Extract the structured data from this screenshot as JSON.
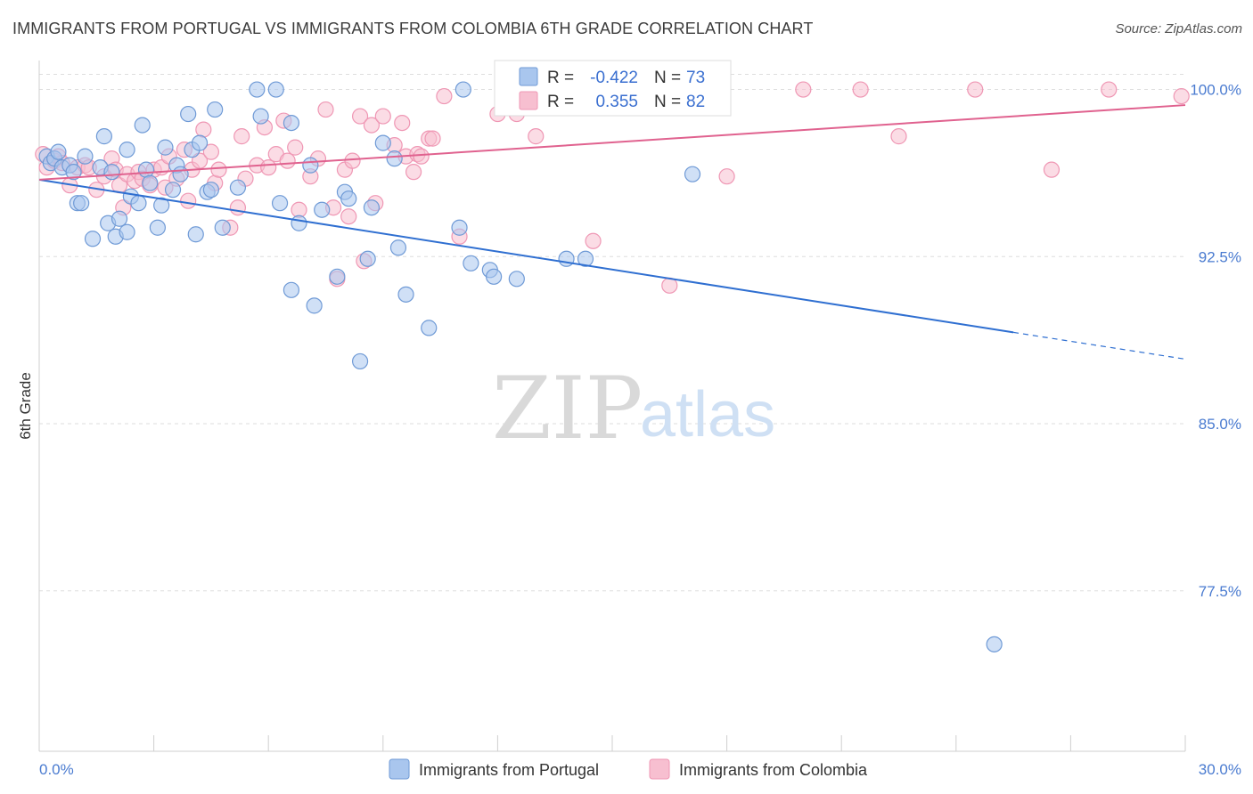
{
  "title": "IMMIGRANTS FROM PORTUGAL VS IMMIGRANTS FROM COLOMBIA 6TH GRADE CORRELATION CHART",
  "source": "Source: ZipAtlas.com",
  "watermark": {
    "zip": "ZIP",
    "atlas": "atlas"
  },
  "colors": {
    "portugal_fill": "#a9c6ee",
    "portugal_stroke": "#6f9ad6",
    "portugal_line": "#2f6fd1",
    "colombia_fill": "#f7bfd0",
    "colombia_stroke": "#ef97b4",
    "colombia_line": "#e0628f",
    "axis_label": "#4a7bd0",
    "grid": "#dedede"
  },
  "stats": [
    {
      "series": "Immigrants from Portugal",
      "r_label": "R =",
      "r_value": "-0.422",
      "n_label": "N =",
      "n_value": "73"
    },
    {
      "series": "Immigrants from Colombia",
      "r_label": "R =",
      "r_value": "0.355",
      "n_label": "N =",
      "n_value": "82"
    }
  ],
  "chart_data": {
    "type": "scatter",
    "title": "IMMIGRANTS FROM PORTUGAL VS IMMIGRANTS FROM COLOMBIA 6TH GRADE CORRELATION CHART",
    "xlabel": "",
    "ylabel": "6th Grade",
    "xlim": [
      0,
      30
    ],
    "ylim": [
      70.3,
      101.3
    ],
    "x_tick_labels": [
      "0.0%",
      "30.0%"
    ],
    "y_ticks": [
      77.5,
      85.0,
      92.5,
      100.0
    ],
    "y_tick_labels": [
      "77.5%",
      "85.0%",
      "92.5%",
      "100.0%"
    ],
    "grid": true,
    "legend_position": "bottom-center",
    "series": [
      {
        "name": "Immigrants from Portugal",
        "trend": {
          "x": [
            0,
            25.5
          ],
          "y": [
            95.95,
            89.1
          ],
          "dashed_to": [
            30,
            87.9
          ]
        },
        "points": [
          [
            0.2,
            97.0
          ],
          [
            0.3,
            96.7
          ],
          [
            0.4,
            96.9
          ],
          [
            0.5,
            97.2
          ],
          [
            0.6,
            96.5
          ],
          [
            0.8,
            96.6
          ],
          [
            0.9,
            96.3
          ],
          [
            1.0,
            94.9
          ],
          [
            1.1,
            94.9
          ],
          [
            1.2,
            97.0
          ],
          [
            1.4,
            93.3
          ],
          [
            1.6,
            96.5
          ],
          [
            1.7,
            97.9
          ],
          [
            1.8,
            94.0
          ],
          [
            1.9,
            96.3
          ],
          [
            2.0,
            93.4
          ],
          [
            2.1,
            94.2
          ],
          [
            2.3,
            93.6
          ],
          [
            2.3,
            97.3
          ],
          [
            2.4,
            95.2
          ],
          [
            2.6,
            94.9
          ],
          [
            2.7,
            98.4
          ],
          [
            2.8,
            96.4
          ],
          [
            2.9,
            95.8
          ],
          [
            3.1,
            93.8
          ],
          [
            3.2,
            94.8
          ],
          [
            3.3,
            97.4
          ],
          [
            3.5,
            95.5
          ],
          [
            3.6,
            96.6
          ],
          [
            3.7,
            96.2
          ],
          [
            3.9,
            98.9
          ],
          [
            4.0,
            97.3
          ],
          [
            4.1,
            93.5
          ],
          [
            4.2,
            97.6
          ],
          [
            4.4,
            95.4
          ],
          [
            4.5,
            95.5
          ],
          [
            4.6,
            99.1
          ],
          [
            4.8,
            93.8
          ],
          [
            5.2,
            95.6
          ],
          [
            5.7,
            100.0
          ],
          [
            5.8,
            98.8
          ],
          [
            6.2,
            100.0
          ],
          [
            6.3,
            94.9
          ],
          [
            6.6,
            98.5
          ],
          [
            6.6,
            91.0
          ],
          [
            6.8,
            94.0
          ],
          [
            7.1,
            96.6
          ],
          [
            7.2,
            90.3
          ],
          [
            7.4,
            94.6
          ],
          [
            7.8,
            91.6
          ],
          [
            8.0,
            95.4
          ],
          [
            8.1,
            95.1
          ],
          [
            8.4,
            87.8
          ],
          [
            8.6,
            92.4
          ],
          [
            8.7,
            94.7
          ],
          [
            9.0,
            97.6
          ],
          [
            9.3,
            96.9
          ],
          [
            9.4,
            92.9
          ],
          [
            9.6,
            90.8
          ],
          [
            10.2,
            89.3
          ],
          [
            11.0,
            93.8
          ],
          [
            11.1,
            100.0
          ],
          [
            11.3,
            92.2
          ],
          [
            11.8,
            91.9
          ],
          [
            11.9,
            91.6
          ],
          [
            12.5,
            91.5
          ],
          [
            13.1,
            100.0
          ],
          [
            13.8,
            92.4
          ],
          [
            14.3,
            92.4
          ],
          [
            14.7,
            100.0
          ],
          [
            16.8,
            100.0
          ],
          [
            17.1,
            96.2
          ],
          [
            25.0,
            75.1
          ]
        ]
      },
      {
        "name": "Immigrants from Colombia",
        "trend": {
          "x": [
            0,
            30
          ],
          "y": [
            95.95,
            99.3
          ]
        },
        "points": [
          [
            0.1,
            97.1
          ],
          [
            0.2,
            96.5
          ],
          [
            0.4,
            96.8
          ],
          [
            0.5,
            97.0
          ],
          [
            0.6,
            96.7
          ],
          [
            0.8,
            95.7
          ],
          [
            1.0,
            96.5
          ],
          [
            1.2,
            96.6
          ],
          [
            1.3,
            96.5
          ],
          [
            1.5,
            95.5
          ],
          [
            1.7,
            96.1
          ],
          [
            1.9,
            96.9
          ],
          [
            2.0,
            96.4
          ],
          [
            2.1,
            95.7
          ],
          [
            2.2,
            94.7
          ],
          [
            2.3,
            96.2
          ],
          [
            2.5,
            95.9
          ],
          [
            2.6,
            96.3
          ],
          [
            2.7,
            96.0
          ],
          [
            2.9,
            95.7
          ],
          [
            3.0,
            96.4
          ],
          [
            3.2,
            96.5
          ],
          [
            3.3,
            95.6
          ],
          [
            3.4,
            97.0
          ],
          [
            3.6,
            96.0
          ],
          [
            3.8,
            97.3
          ],
          [
            3.9,
            95.0
          ],
          [
            4.0,
            96.4
          ],
          [
            4.2,
            96.8
          ],
          [
            4.3,
            98.2
          ],
          [
            4.5,
            97.2
          ],
          [
            4.6,
            95.8
          ],
          [
            4.7,
            96.4
          ],
          [
            5.0,
            93.8
          ],
          [
            5.2,
            94.7
          ],
          [
            5.3,
            97.9
          ],
          [
            5.4,
            96.0
          ],
          [
            5.7,
            96.6
          ],
          [
            5.9,
            98.3
          ],
          [
            6.0,
            96.5
          ],
          [
            6.2,
            97.1
          ],
          [
            6.4,
            98.6
          ],
          [
            6.5,
            96.8
          ],
          [
            6.7,
            97.4
          ],
          [
            6.8,
            94.6
          ],
          [
            7.1,
            96.1
          ],
          [
            7.3,
            96.9
          ],
          [
            7.5,
            99.1
          ],
          [
            7.7,
            94.7
          ],
          [
            7.8,
            91.5
          ],
          [
            8.0,
            96.4
          ],
          [
            8.1,
            94.3
          ],
          [
            8.2,
            96.8
          ],
          [
            8.4,
            98.8
          ],
          [
            8.5,
            92.3
          ],
          [
            8.7,
            98.4
          ],
          [
            8.8,
            94.9
          ],
          [
            9.0,
            98.8
          ],
          [
            9.3,
            97.5
          ],
          [
            9.5,
            98.5
          ],
          [
            9.6,
            97.0
          ],
          [
            9.8,
            96.3
          ],
          [
            9.9,
            97.1
          ],
          [
            10.0,
            97.0
          ],
          [
            10.2,
            97.8
          ],
          [
            10.3,
            97.8
          ],
          [
            10.6,
            99.7
          ],
          [
            11.0,
            93.4
          ],
          [
            12.0,
            98.9
          ],
          [
            12.5,
            98.9
          ],
          [
            13.0,
            97.9
          ],
          [
            14.5,
            93.2
          ],
          [
            15.0,
            99.7
          ],
          [
            16.5,
            91.2
          ],
          [
            18.0,
            96.1
          ],
          [
            20.0,
            100.0
          ],
          [
            21.5,
            100.0
          ],
          [
            22.5,
            97.9
          ],
          [
            24.5,
            100.0
          ],
          [
            26.5,
            96.4
          ],
          [
            28.0,
            100.0
          ],
          [
            29.9,
            99.7
          ]
        ]
      }
    ]
  }
}
